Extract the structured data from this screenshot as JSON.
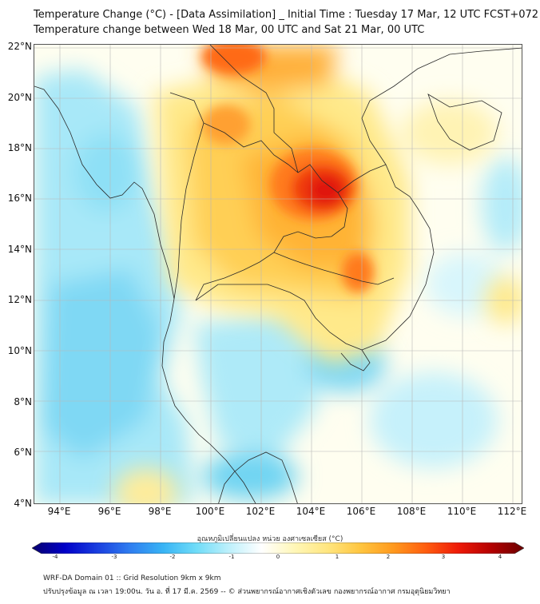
{
  "header": {
    "title_line1": "Temperature Change (°C) - [Data Assimilation] _ Initial Time : Tuesday 17 Mar, 12 UTC FCST+072",
    "title_line2": "Temperature change between Wed 18 Mar, 00 UTC and Sat 21 Mar, 00 UTC"
  },
  "map": {
    "lat_labels": [
      "22°N",
      "20°N",
      "18°N",
      "16°N",
      "14°N",
      "12°N",
      "10°N",
      "8°N",
      "6°N",
      "4°N"
    ],
    "lon_labels": [
      "94°E",
      "96°E",
      "98°E",
      "100°E",
      "102°E",
      "104°E",
      "106°E",
      "108°E",
      "110°E",
      "112°E"
    ],
    "lat_range": [
      4,
      22.3
    ],
    "lon_range": [
      93,
      112.5
    ]
  },
  "legend": {
    "title": "อุณหภูมิเปลี่ยนแปลง หน่วย องศาเซลเซียส (°C)",
    "ticks": [
      "-4",
      "-3",
      "-2",
      "-1",
      "0",
      "1",
      "2",
      "3",
      "4"
    ],
    "range": [
      -4,
      4
    ],
    "colors": [
      "#08006e",
      "#0000c8",
      "#1a3fe0",
      "#2f7ef0",
      "#38b4f5",
      "#6fdcf8",
      "#bdf0fb",
      "#ffffff",
      "#fff7b8",
      "#ffe680",
      "#ffc640",
      "#ff9a1e",
      "#ff5e0f",
      "#ee1a08",
      "#b40000",
      "#6a0000"
    ]
  },
  "footer": {
    "line1": "WRF-DA Domain 01 :: Grid Resolution 9km x 9km",
    "line2": "ปรับปรุงข้อมูล ณ เวลา 19:00น. วัน อ. ที่ 17 มี.ค. 2569 -- © ส่วนพยากรณ์อากาศเชิงตัวเลข กองพยากรณ์อากาศ กรมอุตุนิยมวิทยา"
  }
}
